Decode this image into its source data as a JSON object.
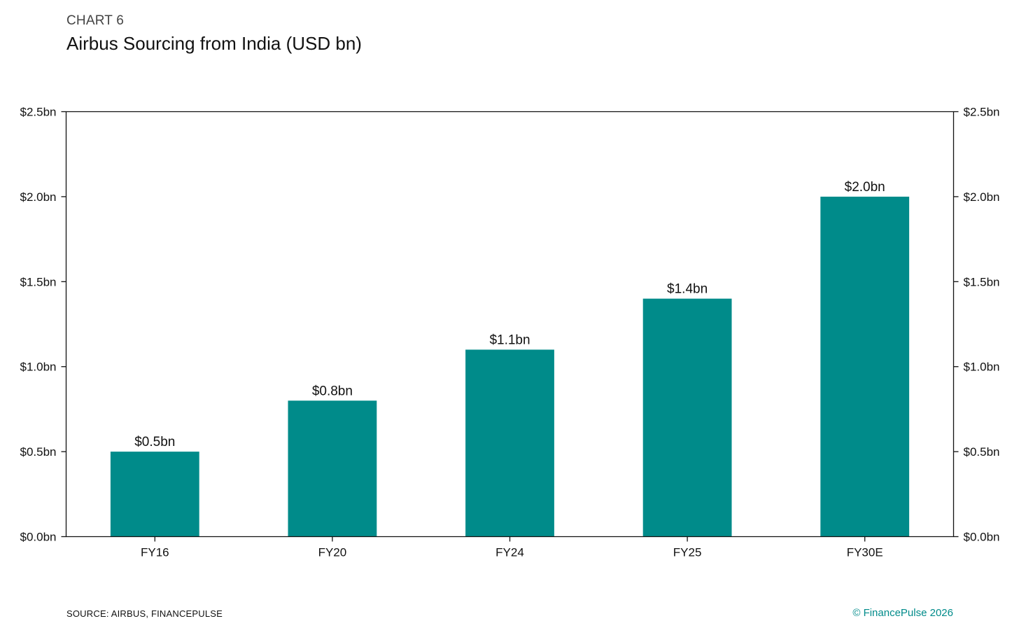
{
  "header": {
    "eyebrow": "CHART 6",
    "title": "Airbus Sourcing from India (USD bn)"
  },
  "footer": {
    "source": "SOURCE: AIRBUS, FINANCEPULSE",
    "copyright": "© FinancePulse 2026"
  },
  "colors": {
    "bar": "#008B8A",
    "copyright": "#008B8A",
    "axis": "#111111"
  },
  "chart_data": {
    "type": "bar",
    "categories": [
      "FY16",
      "FY20",
      "FY24",
      "FY25",
      "FY30E"
    ],
    "values": [
      0.5,
      0.8,
      1.1,
      1.4,
      2.0
    ],
    "data_labels": [
      "$0.5bn",
      "$0.8bn",
      "$1.1bn",
      "$1.4bn",
      "$2.0bn"
    ],
    "ylim": [
      0,
      2.5
    ],
    "yticks": [
      0,
      0.5,
      1.0,
      1.5,
      2.0,
      2.5
    ],
    "ytick_labels": [
      "$0.0bn",
      "$0.5bn",
      "$1.0bn",
      "$1.5bn",
      "$2.0bn",
      "$2.5bn"
    ],
    "y_axis_sides": [
      "left",
      "right"
    ],
    "grid": false,
    "legend": "none"
  }
}
